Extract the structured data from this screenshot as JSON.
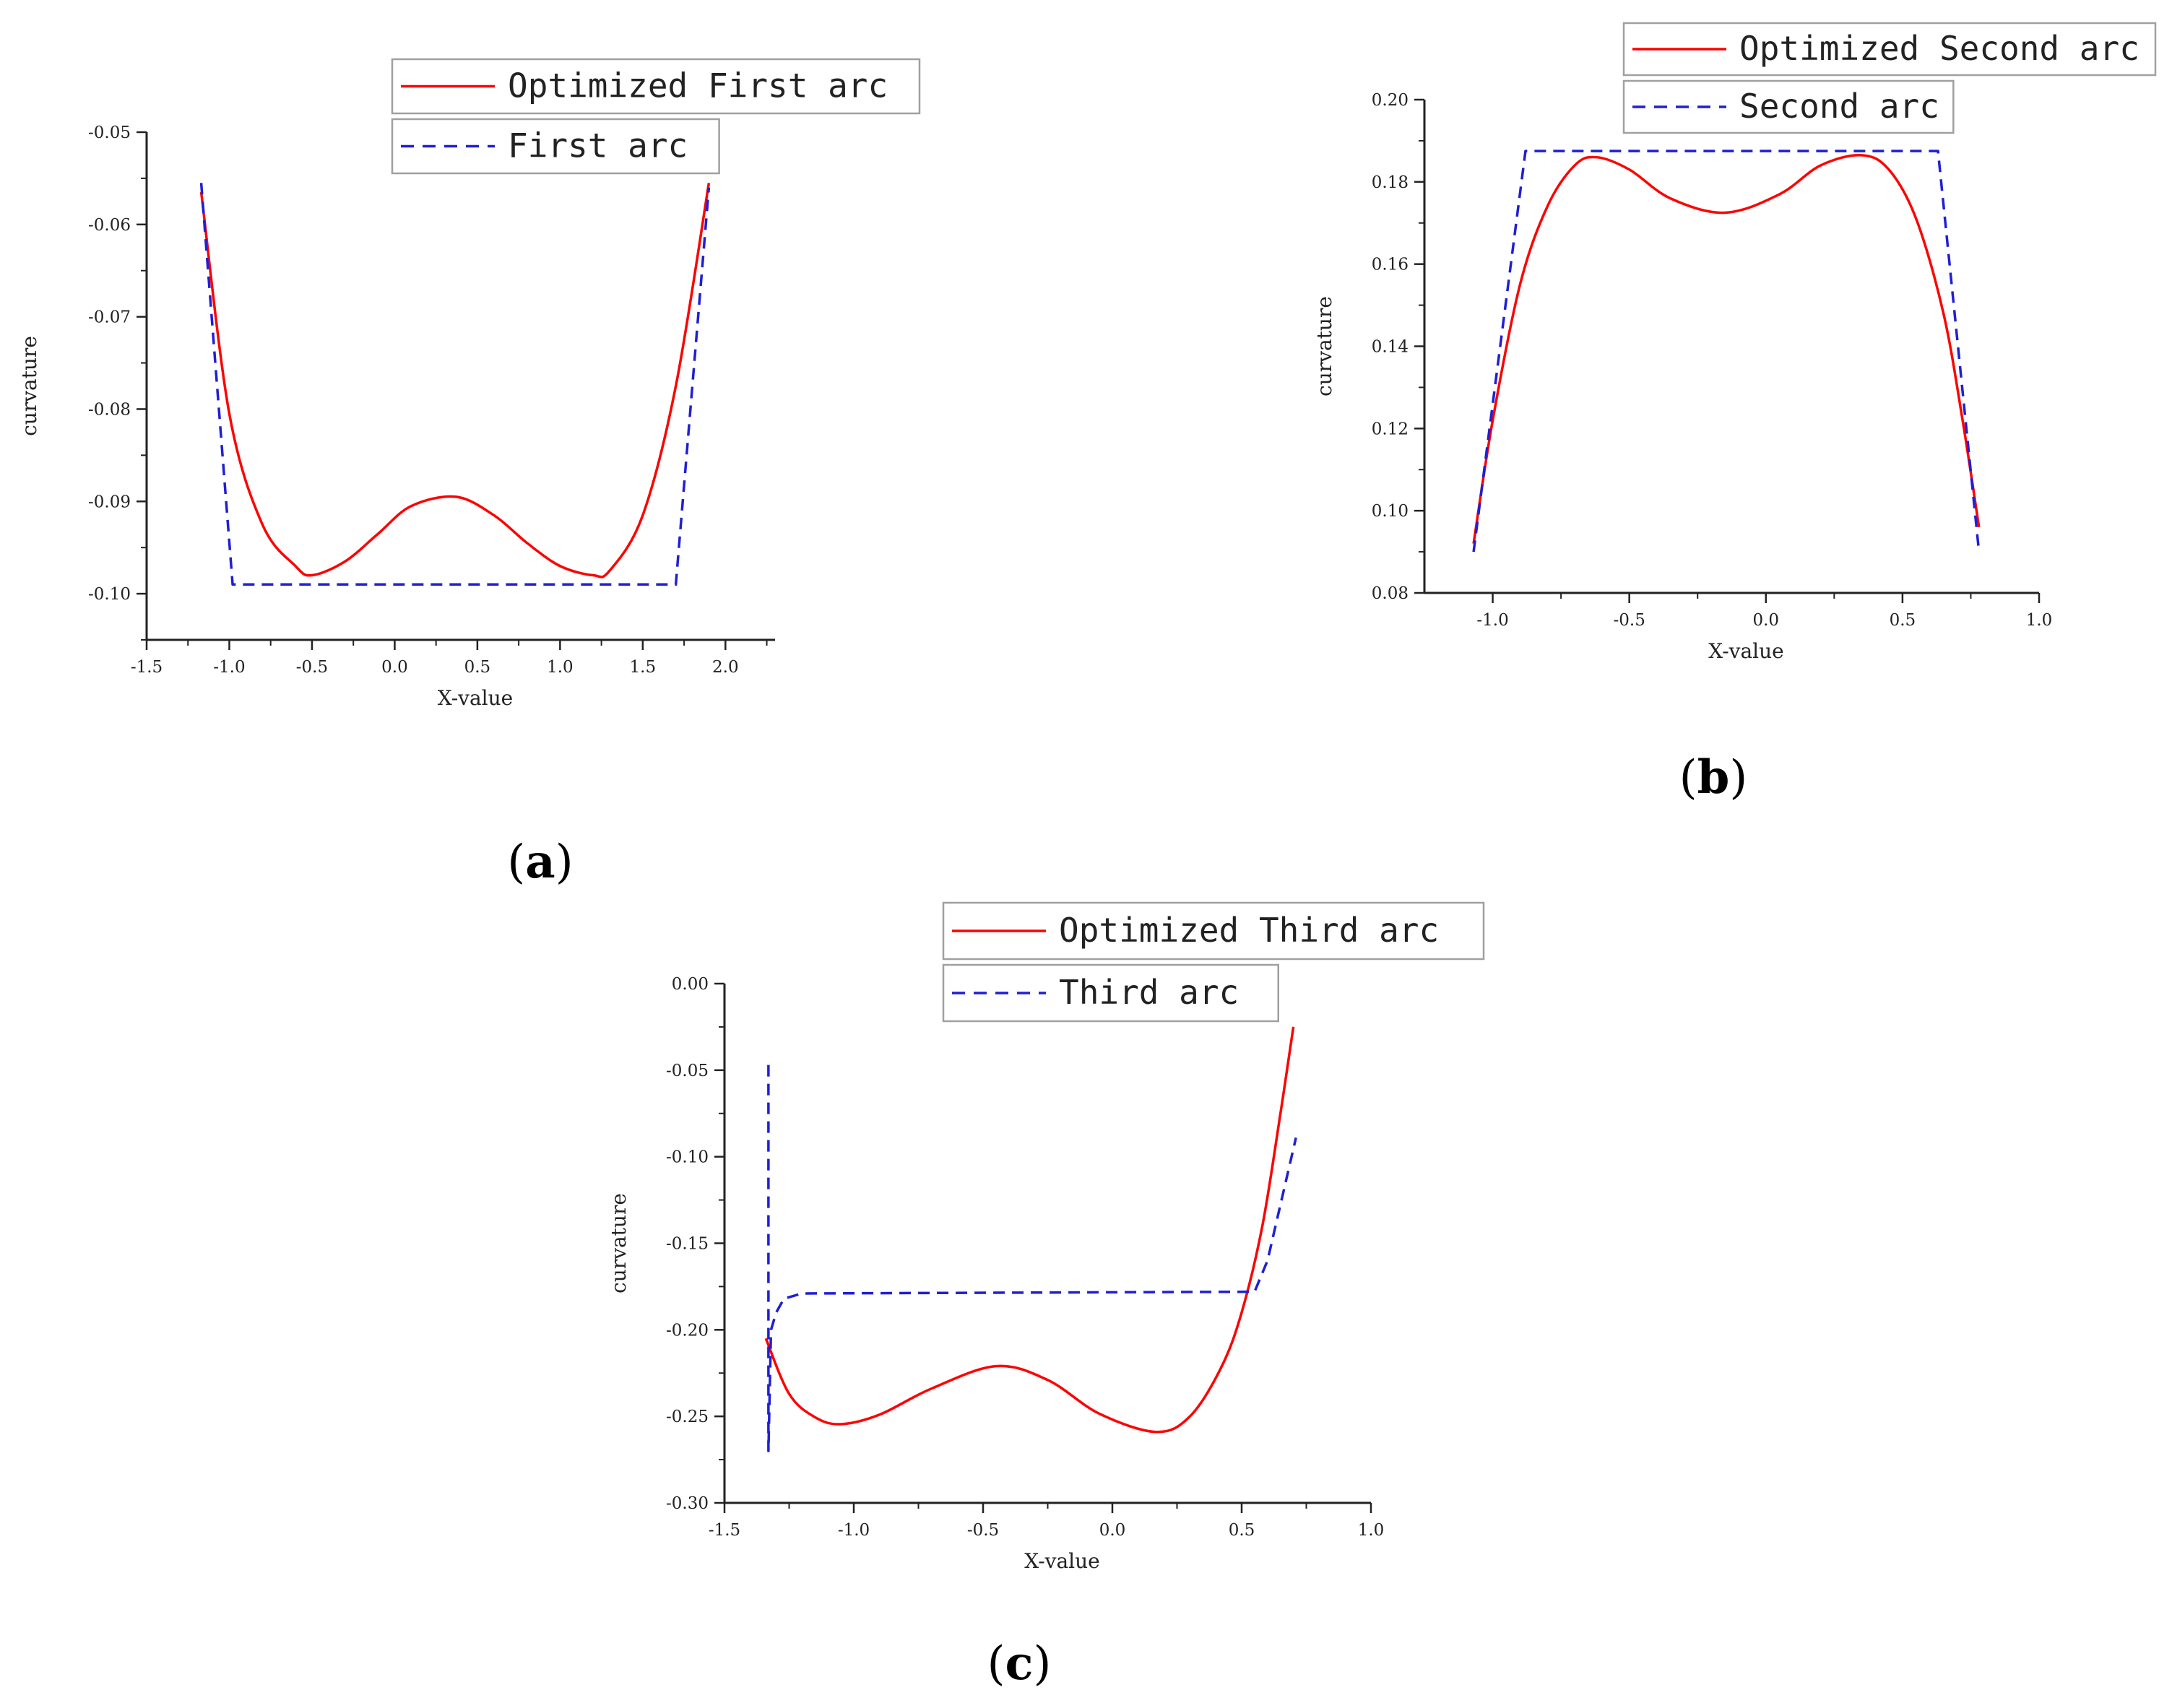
{
  "colors": {
    "optimized": "#ff0000",
    "original": "#1f1fd6",
    "axis": "#222222",
    "legend_border": "#a0a0a0"
  },
  "chart_data": [
    {
      "panel": "(a)",
      "panel_letter": "a",
      "type": "line",
      "xlabel": "X-value",
      "ylabel": "curvature",
      "xlim": [
        -1.5,
        2.3
      ],
      "ylim": [
        -0.105,
        -0.05
      ],
      "xticks": [
        -1.5,
        -1.0,
        -0.5,
        0.0,
        0.5,
        1.0,
        1.5,
        2.0
      ],
      "xtick_labels": [
        "-1.5",
        "-1.0",
        "-0.5",
        "0.0",
        "0.5",
        "1.0",
        "1.5",
        "2.0"
      ],
      "yticks": [
        -0.05,
        -0.06,
        -0.07,
        -0.08,
        -0.09,
        -0.1
      ],
      "ytick_labels": [
        "-0.05",
        "-0.06",
        "-0.07",
        "-0.08",
        "-0.09",
        "-0.10"
      ],
      "legend_position": "top",
      "series": [
        {
          "name": "Optimized First arc",
          "style": "solid",
          "x": [
            -1.17,
            -1.0,
            -0.8,
            -0.6,
            -0.5,
            -0.3,
            -0.1,
            0.1,
            0.37,
            0.6,
            0.8,
            1.0,
            1.2,
            1.3,
            1.5,
            1.7,
            1.9
          ],
          "y": [
            -0.0565,
            -0.0805,
            -0.0925,
            -0.097,
            -0.098,
            -0.0965,
            -0.0935,
            -0.0905,
            -0.0895,
            -0.0915,
            -0.0945,
            -0.097,
            -0.098,
            -0.0975,
            -0.0915,
            -0.0775,
            -0.0555
          ]
        },
        {
          "name": "First arc",
          "style": "dashed",
          "x": [
            -1.17,
            -0.98,
            1.7,
            1.9
          ],
          "y": [
            -0.0555,
            -0.099,
            -0.099,
            -0.056
          ]
        }
      ]
    },
    {
      "panel": "(b)",
      "panel_letter": "b",
      "type": "line",
      "xlabel": "X-value",
      "ylabel": "curvature",
      "xlim": [
        -1.25,
        1.0
      ],
      "ylim": [
        0.08,
        0.2
      ],
      "xticks": [
        -1.0,
        -0.5,
        0.0,
        0.5,
        1.0
      ],
      "xtick_labels": [
        "-1.0",
        "-0.5",
        "0.0",
        "0.5",
        "1.0"
      ],
      "yticks": [
        0.2,
        0.18,
        0.16,
        0.14,
        0.12,
        0.1,
        0.08
      ],
      "ytick_labels": [
        "0.20",
        "0.18",
        "0.16",
        "0.14",
        "0.12",
        "0.10",
        "0.08"
      ],
      "legend_position": "top",
      "series": [
        {
          "name": "Optimized Second arc",
          "style": "solid",
          "x": [
            -1.07,
            -1.0,
            -0.9,
            -0.8,
            -0.7,
            -0.62,
            -0.5,
            -0.35,
            -0.15,
            0.05,
            0.2,
            0.35,
            0.45,
            0.55,
            0.65,
            0.72,
            0.78
          ],
          "y": [
            0.092,
            0.122,
            0.155,
            0.174,
            0.184,
            0.186,
            0.183,
            0.176,
            0.1725,
            0.177,
            0.184,
            0.1865,
            0.183,
            0.171,
            0.148,
            0.122,
            0.096
          ]
        },
        {
          "name": "Second arc",
          "style": "dashed",
          "x": [
            -1.07,
            -0.88,
            0.63,
            0.78
          ],
          "y": [
            0.09,
            0.1875,
            0.1875,
            0.09
          ]
        }
      ]
    },
    {
      "panel": "(c)",
      "panel_letter": "c",
      "type": "line",
      "xlabel": "X-value",
      "ylabel": "curvature",
      "xlim": [
        -1.5,
        1.0
      ],
      "ylim": [
        -0.3,
        0.0
      ],
      "xticks": [
        -1.5,
        -1.0,
        -0.5,
        0.0,
        0.5,
        1.0
      ],
      "xtick_labels": [
        "-1.5",
        "-1.0",
        "-0.5",
        "0.0",
        "0.5",
        "1.0"
      ],
      "yticks": [
        0.0,
        -0.05,
        -0.1,
        -0.15,
        -0.2,
        -0.25,
        -0.3
      ],
      "ytick_labels": [
        "0.00",
        "-0.05",
        "-0.10",
        "-0.15",
        "-0.20",
        "-0.25",
        "-0.30"
      ],
      "legend_position": "top",
      "series": [
        {
          "name": "Optimized Third arc",
          "style": "solid",
          "x": [
            -1.34,
            -1.25,
            -1.15,
            -1.05,
            -0.9,
            -0.7,
            -0.45,
            -0.25,
            -0.05,
            0.17,
            0.3,
            0.42,
            0.5,
            0.58,
            0.65,
            0.7
          ],
          "y": [
            -0.205,
            -0.237,
            -0.2505,
            -0.2545,
            -0.249,
            -0.234,
            -0.221,
            -0.229,
            -0.2485,
            -0.259,
            -0.25,
            -0.222,
            -0.19,
            -0.14,
            -0.075,
            -0.025
          ]
        },
        {
          "name": "Third arc",
          "style": "dashed",
          "x": [
            -1.33,
            -1.33,
            -1.32,
            -1.3,
            -1.27,
            -1.2,
            0.55,
            0.6,
            0.71
          ],
          "y": [
            -0.047,
            -0.27,
            -0.2,
            -0.19,
            -0.182,
            -0.179,
            -0.178,
            -0.16,
            -0.089
          ]
        }
      ]
    }
  ]
}
